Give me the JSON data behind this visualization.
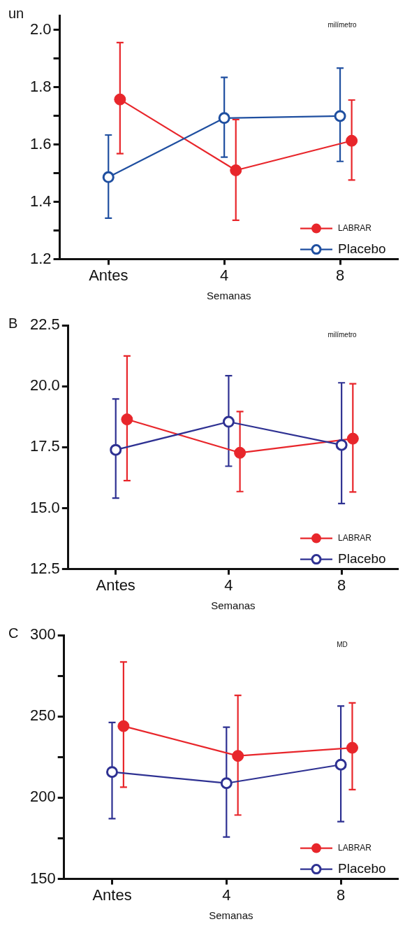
{
  "chart_data": [
    {
      "type": "line",
      "title": "un",
      "xlabel": "Semanas",
      "categories": [
        "Antes",
        "4",
        "8"
      ],
      "annotations": [
        "milímetro"
      ],
      "ylim": [
        1.2,
        2.05
      ],
      "yticks": [
        1.2,
        {
          "value": 1.3,
          "label": null
        },
        1.4,
        {
          "value": 1.5,
          "label": null
        },
        1.6,
        {
          "value": 1.7,
          "label": null
        },
        1.8,
        {
          "value": 1.9,
          "label": null
        },
        {
          "value": 2,
          "label": "2.0"
        }
      ],
      "marker": "circle",
      "legend": "bottom right",
      "series": [
        {
          "name": "LABRAR",
          "color": "#e8262b",
          "values": [
            1.757,
            1.51,
            1.613
          ],
          "errors": [
            [
              1.568,
              1.955
            ],
            [
              1.336,
              1.687
            ],
            [
              1.476,
              1.755
            ]
          ]
        },
        {
          "name": "Placebo",
          "color": "#1f4fa0",
          "values": [
            1.486,
            1.692,
            1.699
          ],
          "errors": [
            [
              1.343,
              1.633
            ],
            [
              1.556,
              1.834
            ],
            [
              1.541,
              1.866
            ]
          ]
        }
      ]
    },
    {
      "type": "line",
      "title": "B",
      "xlabel": "Semanas",
      "categories": [
        "Antes",
        "4",
        "8"
      ],
      "annotations": [
        "milímetro"
      ],
      "ylim": [
        12.5,
        22.5
      ],
      "yticks": [
        {
          "value": 12.5,
          "label": "12.5"
        },
        {
          "value": 15,
          "label": "15.0"
        },
        {
          "value": 17.5,
          "label": "17.5"
        },
        {
          "value": 20,
          "label": "20.0"
        },
        {
          "value": 22.5,
          "label": "22.5"
        }
      ],
      "marker": "circle",
      "legend": "bottom right",
      "series": [
        {
          "name": "LABRAR",
          "color": "#e8262b",
          "values": [
            18.64,
            17.27,
            17.85
          ],
          "errors": [
            [
              16.13,
              21.24
            ],
            [
              15.68,
              18.96
            ],
            [
              15.66,
              20.1
            ]
          ]
        },
        {
          "name": "Placebo",
          "color": "#2e3192",
          "values": [
            17.39,
            18.54,
            17.59
          ],
          "errors": [
            [
              15.41,
              19.48
            ],
            [
              16.72,
              20.43
            ],
            [
              15.19,
              20.14
            ]
          ]
        }
      ]
    },
    {
      "type": "line",
      "title": "C",
      "xlabel": "Semanas",
      "categories": [
        "Antes",
        "4",
        "8"
      ],
      "annotations": [
        "MD"
      ],
      "ylim": [
        150,
        300
      ],
      "yticks": [
        150,
        {
          "value": 175,
          "label": null
        },
        200,
        {
          "value": 225,
          "label": null
        },
        250,
        {
          "value": 275,
          "label": null
        },
        300
      ],
      "marker": "circle",
      "legend": "bottom right",
      "series": [
        {
          "name": "LABRAR",
          "color": "#e8262b",
          "values": [
            244,
            225.7,
            230.7
          ],
          "errors": [
            [
              206.5,
              283.5
            ],
            [
              189.3,
              262.9
            ],
            [
              205,
              258.3
            ]
          ]
        },
        {
          "name": "Placebo",
          "color": "#2e3192",
          "values": [
            215.8,
            208.9,
            220.3
          ],
          "errors": [
            [
              187.1,
              246.3
            ],
            [
              175.8,
              243.4
            ],
            [
              185.3,
              256.4
            ]
          ]
        }
      ]
    }
  ]
}
